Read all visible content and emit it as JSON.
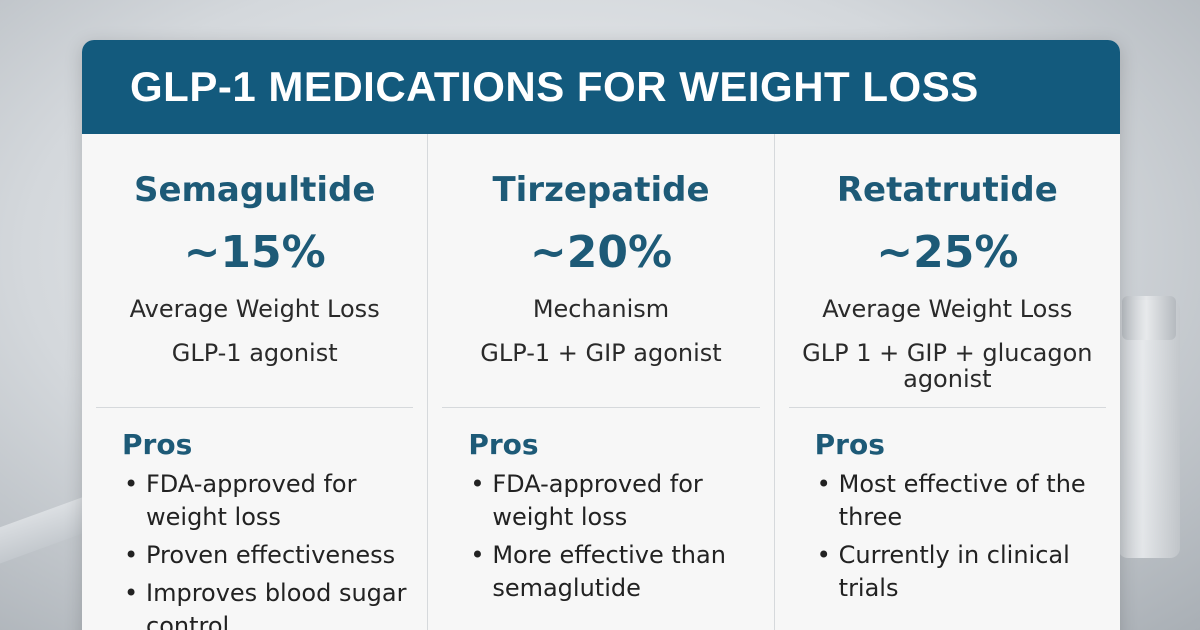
{
  "title": "GLP-1 MEDICATIONS FOR WEIGHT LOSS",
  "colors": {
    "header_bg": "#135a7d",
    "accent_text": "#1d5a77",
    "card_bg": "#f7f7f7"
  },
  "columns": [
    {
      "name": "Semagultide",
      "percent": "~15%",
      "descriptor": "Average Weight Loss",
      "mechanism": "GLP-1 agonist",
      "pros_title": "Pros",
      "pros": [
        "FDA-approved for weight loss",
        "Proven effectiveness",
        "Improves blood sugar control"
      ]
    },
    {
      "name": "Tirzepatide",
      "percent": "~20%",
      "descriptor": "Mechanism",
      "mechanism": "GLP-1 + GIP agonist",
      "pros_title": "Pros",
      "pros": [
        "FDA-approved for weight loss",
        "More effective than semaglutide"
      ]
    },
    {
      "name": "Retatrutide",
      "percent": "~25%",
      "descriptor": "Average Weight Loss",
      "mechanism": "GLP 1 + GIP + glucagon agonist",
      "pros_title": "Pros",
      "pros": [
        "Most effective of the three",
        "Currently in clinical trials"
      ]
    }
  ]
}
